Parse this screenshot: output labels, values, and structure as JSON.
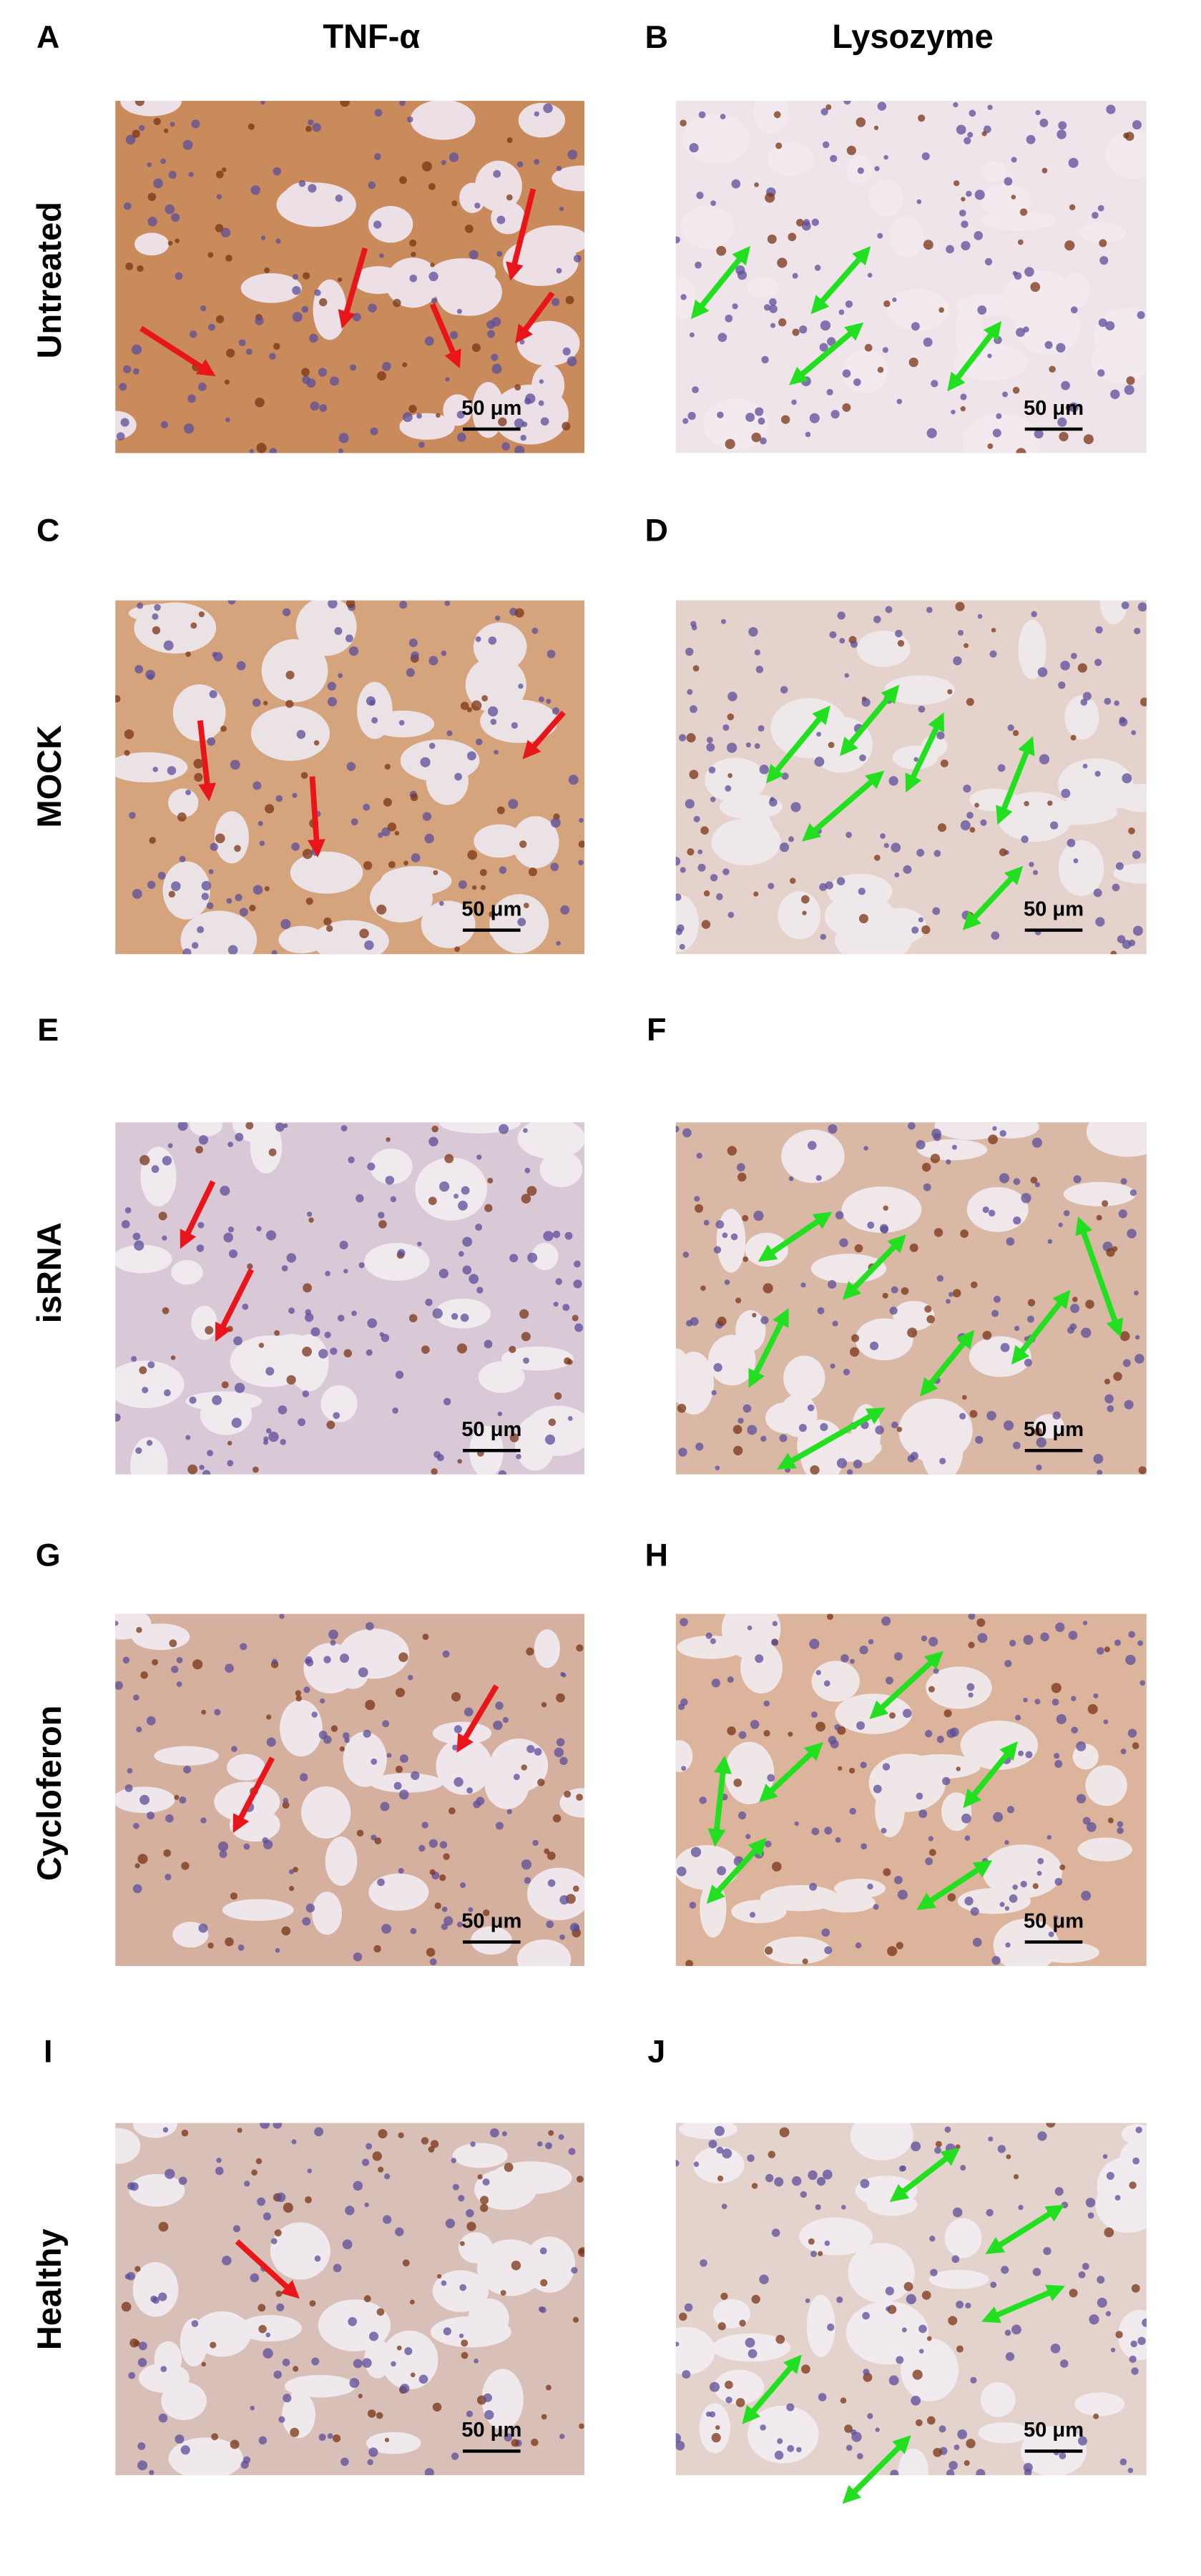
{
  "columns": [
    "TNF-α",
    "Lysozyme"
  ],
  "rows": [
    {
      "label": "Untreated",
      "panels": [
        {
          "letter": "A",
          "scale_bar": "50 μm"
        },
        {
          "letter": "B",
          "scale_bar": "50 μm"
        }
      ]
    },
    {
      "label": "MOCK",
      "panels": [
        {
          "letter": "C",
          "scale_bar": "50 μm"
        },
        {
          "letter": "D",
          "scale_bar": "50 μm"
        }
      ]
    },
    {
      "label": "isRNA",
      "panels": [
        {
          "letter": "E",
          "scale_bar": "50 μm"
        },
        {
          "letter": "F",
          "scale_bar": "50 μm"
        }
      ]
    },
    {
      "label": "Cycloferon",
      "panels": [
        {
          "letter": "G",
          "scale_bar": "50 μm"
        },
        {
          "letter": "H",
          "scale_bar": "50 μm"
        }
      ]
    },
    {
      "label": "Healthy",
      "panels": [
        {
          "letter": "I",
          "scale_bar": "50 μm"
        },
        {
          "letter": "J",
          "scale_bar": "50 μm"
        }
      ]
    }
  ]
}
